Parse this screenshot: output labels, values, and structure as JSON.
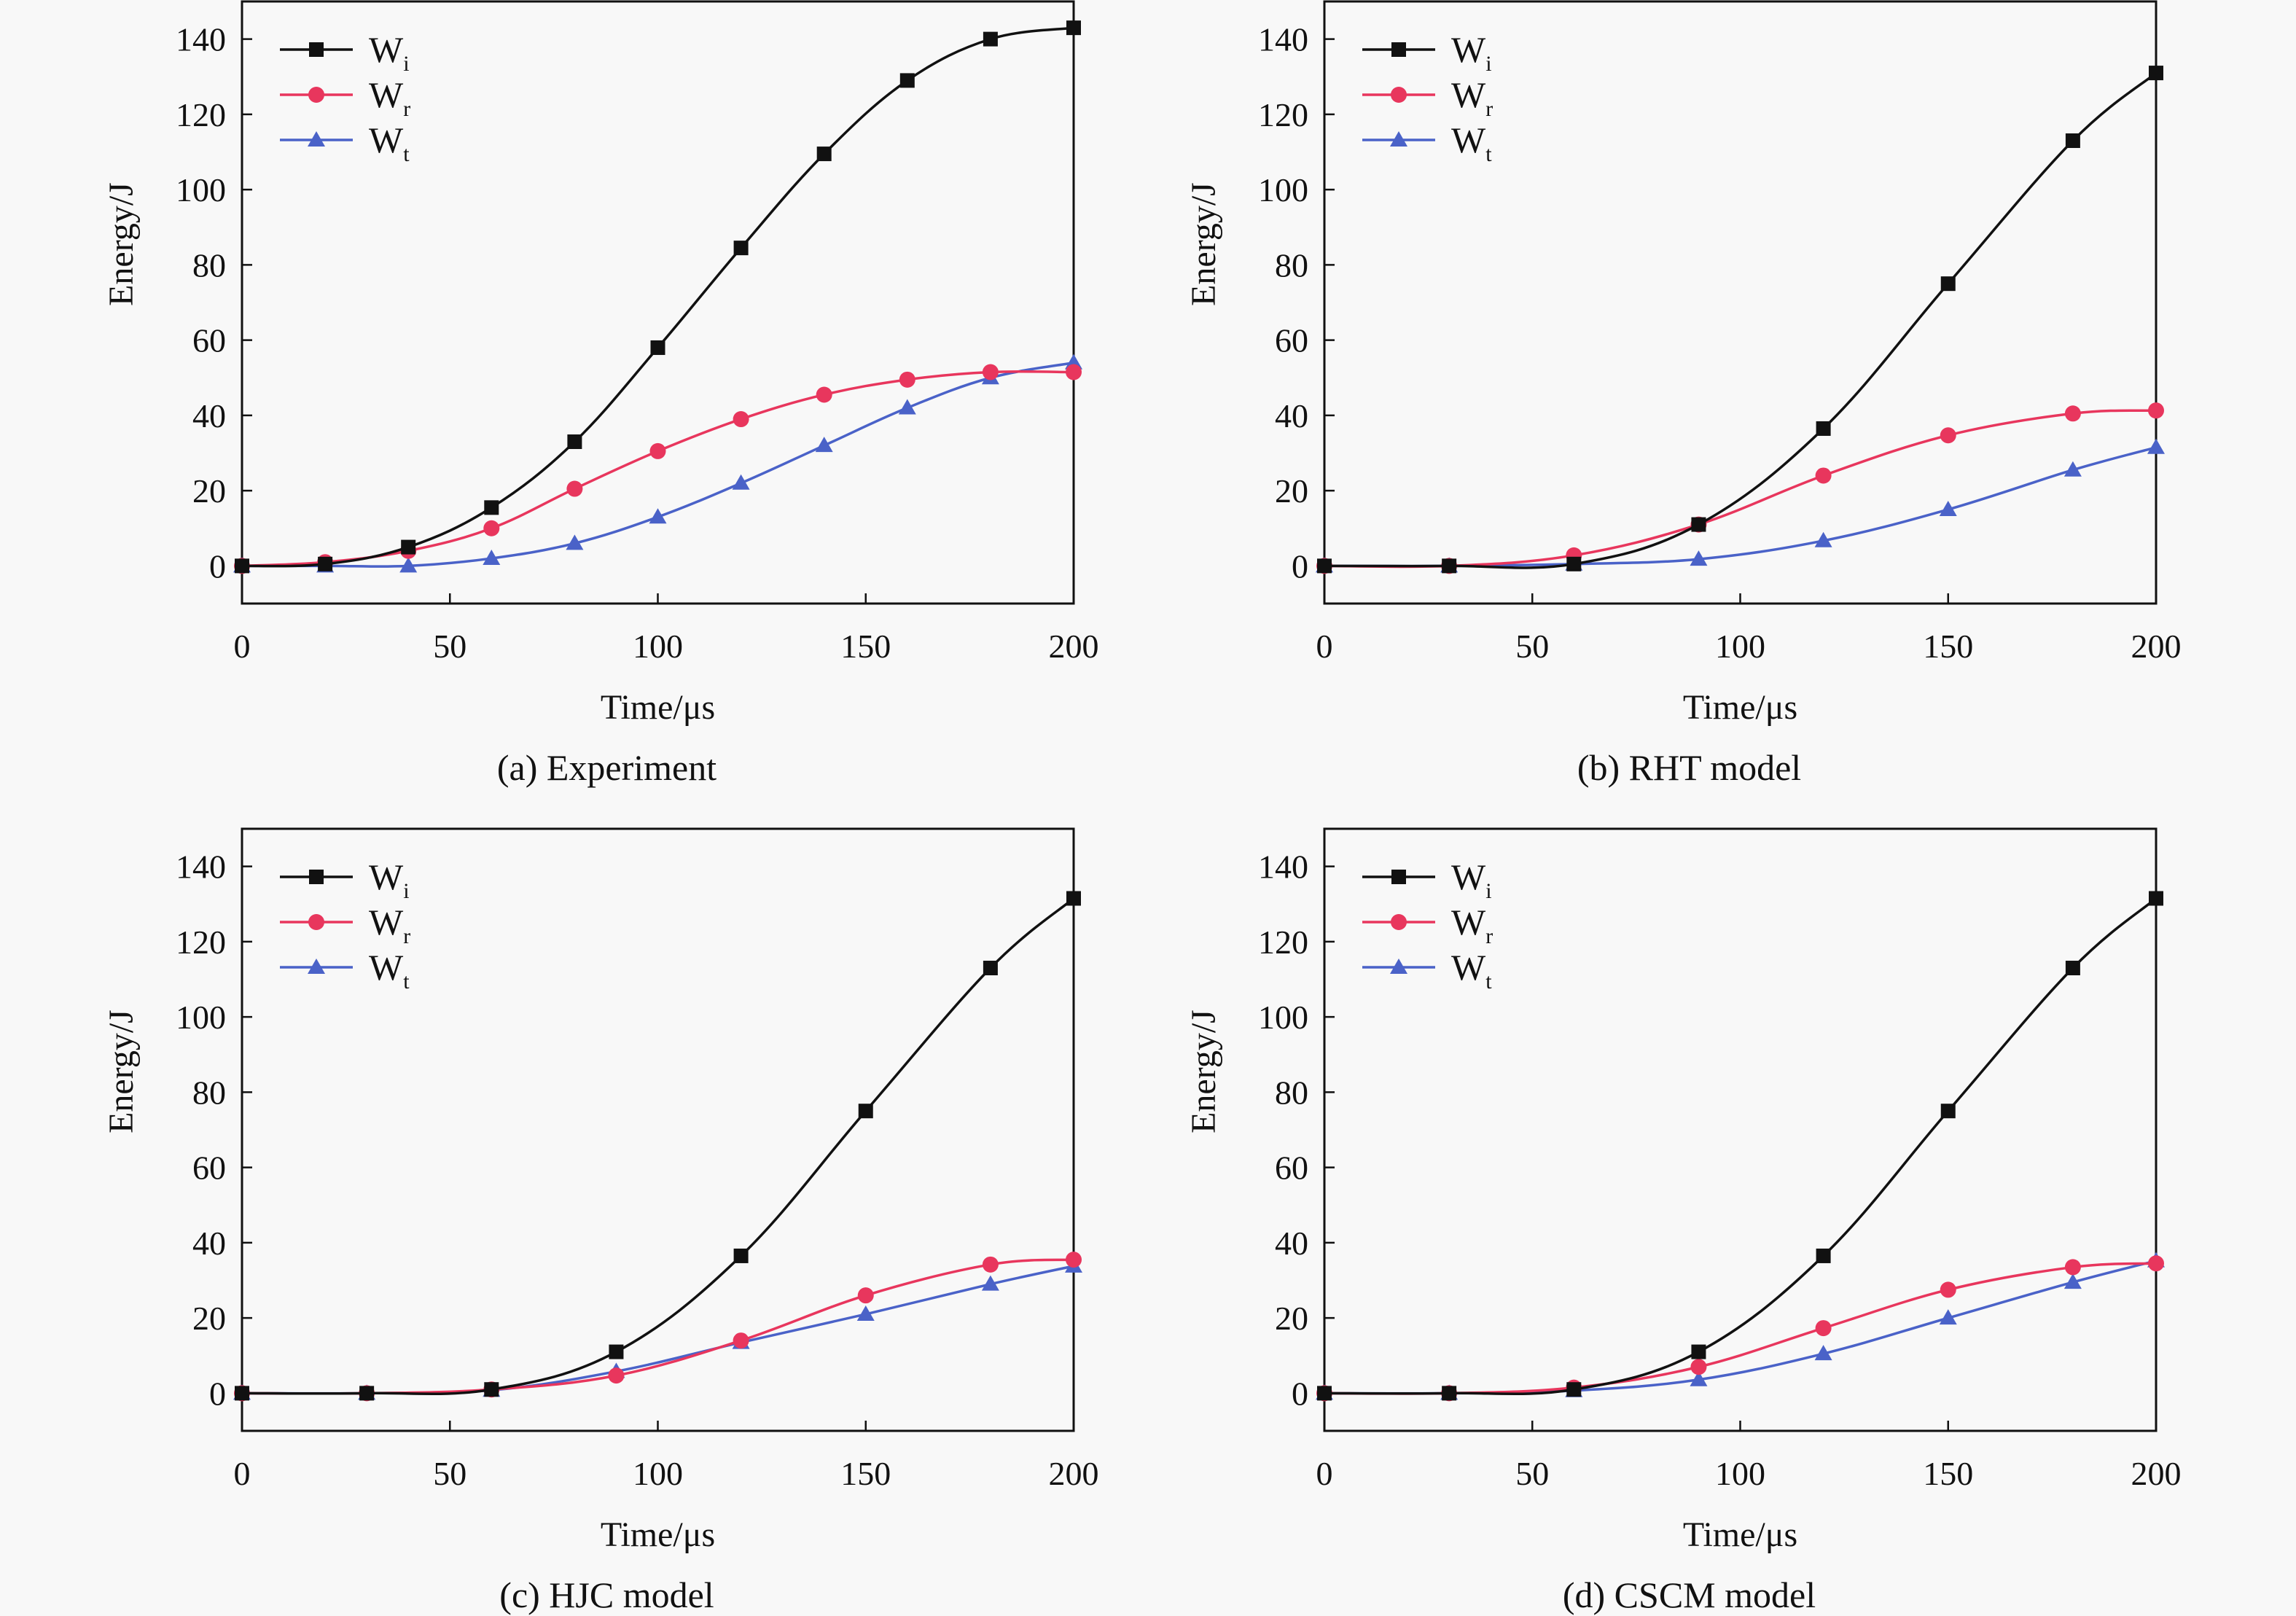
{
  "chart_data": [
    {
      "type": "line",
      "caption": "(a) Experiment",
      "xlabel": "Time/μs",
      "ylabel": "Energy/J",
      "xlim": [
        0,
        200
      ],
      "ylim": [
        -10,
        150
      ],
      "xticks": [
        0,
        50,
        100,
        150,
        200
      ],
      "yticks": [
        0,
        20,
        40,
        60,
        80,
        100,
        120,
        140
      ],
      "grid": false,
      "legend_position": "top-left",
      "x": [
        0,
        20,
        40,
        60,
        80,
        100,
        120,
        140,
        160,
        180,
        200
      ],
      "series": [
        {
          "name": "W",
          "sub": "i",
          "marker": "square",
          "color": "#111111",
          "values": [
            0,
            0.5,
            5,
            15.5,
            33,
            58,
            84.5,
            109.5,
            129,
            140,
            143
          ]
        },
        {
          "name": "W",
          "sub": "r",
          "marker": "circle",
          "color": "#e8365d",
          "values": [
            0,
            1,
            4,
            10,
            20.5,
            30.5,
            39,
            45.5,
            49.5,
            51.5,
            51.5
          ]
        },
        {
          "name": "W",
          "sub": "t",
          "marker": "triangle",
          "color": "#4a62c8",
          "values": [
            0,
            0,
            0,
            2,
            6,
            13,
            22,
            32,
            42,
            50,
            54
          ]
        }
      ]
    },
    {
      "type": "line",
      "caption": "(b) RHT model",
      "xlabel": "Time/μs",
      "ylabel": "Energy/J",
      "xlim": [
        0,
        200
      ],
      "ylim": [
        -10,
        150
      ],
      "xticks": [
        0,
        50,
        100,
        150,
        200
      ],
      "yticks": [
        0,
        20,
        40,
        60,
        80,
        100,
        120,
        140
      ],
      "grid": false,
      "legend_position": "top-left",
      "x": [
        0,
        30,
        60,
        90,
        120,
        150,
        180,
        200
      ],
      "series": [
        {
          "name": "W",
          "sub": "i",
          "marker": "square",
          "color": "#111111",
          "values": [
            0,
            0,
            0.5,
            11,
            36.5,
            75,
            113,
            131
          ]
        },
        {
          "name": "W",
          "sub": "r",
          "marker": "circle",
          "color": "#e8365d",
          "values": [
            0,
            0,
            2.8,
            11,
            24,
            34.7,
            40.5,
            41.3
          ]
        },
        {
          "name": "W",
          "sub": "t",
          "marker": "triangle",
          "color": "#4a62c8",
          "values": [
            0,
            0,
            0.5,
            1.8,
            6.7,
            15,
            25.5,
            31.5
          ]
        }
      ]
    },
    {
      "type": "line",
      "caption": "(c) HJC model",
      "xlabel": "Time/μs",
      "ylabel": "Energy/J",
      "xlim": [
        0,
        200
      ],
      "ylim": [
        -10,
        150
      ],
      "xticks": [
        0,
        50,
        100,
        150,
        200
      ],
      "yticks": [
        0,
        20,
        40,
        60,
        80,
        100,
        120,
        140
      ],
      "grid": false,
      "legend_position": "top-left",
      "x": [
        0,
        30,
        60,
        90,
        120,
        150,
        180,
        200
      ],
      "series": [
        {
          "name": "W",
          "sub": "i",
          "marker": "square",
          "color": "#111111",
          "values": [
            0,
            0,
            1,
            11,
            36.5,
            75,
            113,
            131.5
          ]
        },
        {
          "name": "W",
          "sub": "r",
          "marker": "circle",
          "color": "#e8365d",
          "values": [
            0,
            0,
            1,
            4.7,
            14,
            26,
            34.2,
            35.5
          ]
        },
        {
          "name": "W",
          "sub": "t",
          "marker": "triangle",
          "color": "#4a62c8",
          "values": [
            0,
            0,
            0.8,
            5.8,
            13.5,
            21,
            29,
            33.8
          ]
        }
      ]
    },
    {
      "type": "line",
      "caption": "(d) CSCM model",
      "xlabel": "Time/μs",
      "ylabel": "Energy/J",
      "xlim": [
        0,
        200
      ],
      "ylim": [
        -10,
        150
      ],
      "xticks": [
        0,
        50,
        100,
        150,
        200
      ],
      "yticks": [
        0,
        20,
        40,
        60,
        80,
        100,
        120,
        140
      ],
      "grid": false,
      "legend_position": "top-left",
      "x": [
        0,
        30,
        60,
        90,
        120,
        150,
        180,
        200
      ],
      "series": [
        {
          "name": "W",
          "sub": "i",
          "marker": "square",
          "color": "#111111",
          "values": [
            0,
            0,
            1,
            11,
            36.5,
            75,
            113,
            131.5
          ]
        },
        {
          "name": "W",
          "sub": "r",
          "marker": "circle",
          "color": "#e8365d",
          "values": [
            0,
            0,
            1.5,
            7,
            17.3,
            27.5,
            33.5,
            34.5
          ]
        },
        {
          "name": "W",
          "sub": "t",
          "marker": "triangle",
          "color": "#4a62c8",
          "values": [
            0,
            0,
            0.7,
            3.6,
            10.5,
            20,
            29.5,
            35.2
          ]
        }
      ]
    }
  ]
}
